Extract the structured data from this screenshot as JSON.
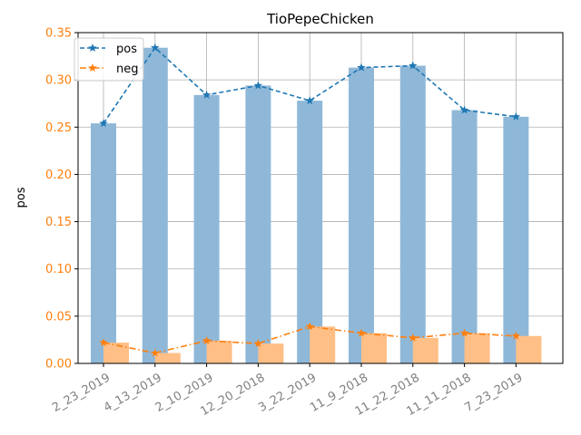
{
  "chart_data": {
    "type": "bar",
    "title": "TioPepeChicken",
    "ylabel": "pos",
    "xlabel": "",
    "categories": [
      "2_23_2019",
      "4_13_2019",
      "2_10_2019",
      "12_20_2018",
      "3_22_2019",
      "11_9_2018",
      "11_22_2018",
      "11_11_2018",
      "7_23_2019"
    ],
    "ylim": [
      0,
      0.35
    ],
    "yticks": [
      "0.00",
      "0.05",
      "0.10",
      "0.15",
      "0.20",
      "0.25",
      "0.30",
      "0.35"
    ],
    "grid": true,
    "legend_position": "top-left",
    "series": [
      {
        "name": "pos",
        "values": [
          0.254,
          0.334,
          0.284,
          0.294,
          0.278,
          0.313,
          0.315,
          0.268,
          0.261
        ],
        "color": "#1f77b4",
        "bar_color": "#8fb8d8",
        "line_style": "dashed",
        "marker": "star"
      },
      {
        "name": "neg",
        "values": [
          0.022,
          0.011,
          0.024,
          0.021,
          0.039,
          0.032,
          0.027,
          0.032,
          0.029
        ],
        "color": "#ff7f0e",
        "bar_color": "#ffbf86",
        "line_style": "dashdot",
        "marker": "star"
      }
    ],
    "colors": {
      "axis": "#000000",
      "tick_label_y": "#ff7f0e",
      "tick_label_x": "#808080",
      "grid": "#b0b0b0"
    }
  }
}
